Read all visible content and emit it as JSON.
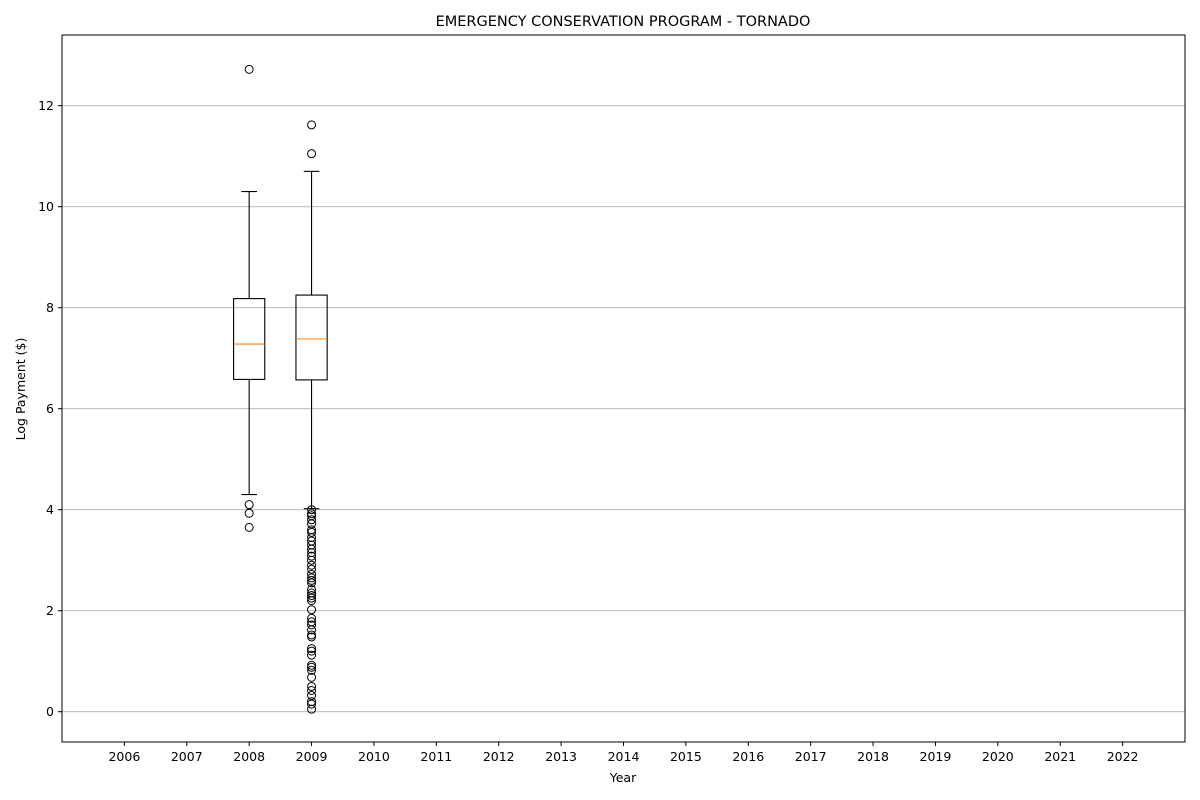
{
  "chart_data": {
    "type": "box",
    "title": "EMERGENCY CONSERVATION PROGRAM - TORNADO",
    "xlabel": "Year",
    "ylabel": "Log Payment ($)",
    "categories": [
      "2006",
      "2007",
      "2008",
      "2009",
      "2010",
      "2011",
      "2012",
      "2013",
      "2014",
      "2015",
      "2016",
      "2017",
      "2018",
      "2019",
      "2020",
      "2021",
      "2022"
    ],
    "ylim": [
      -0.6,
      13.4
    ],
    "yticks": [
      0,
      2,
      4,
      6,
      8,
      10,
      12
    ],
    "grid": "y",
    "colors": {
      "box": "#000000",
      "median": "#ff7f0e",
      "grid": "#b0b0b0"
    },
    "boxes": [
      {
        "category": "2008",
        "whisker_low": 4.3,
        "q1": 6.58,
        "median": 7.28,
        "q3": 8.18,
        "whisker_high": 10.3,
        "outliers": [
          12.72,
          4.1,
          3.93,
          3.65
        ]
      },
      {
        "category": "2009",
        "whisker_low": 4.02,
        "q1": 6.57,
        "median": 7.38,
        "q3": 8.25,
        "whisker_high": 10.7,
        "outliers": [
          11.62,
          11.05,
          4.0,
          3.92,
          3.88,
          3.8,
          3.72,
          3.6,
          3.55,
          3.45,
          3.38,
          3.3,
          3.22,
          3.15,
          3.08,
          3.0,
          2.9,
          2.82,
          2.72,
          2.65,
          2.6,
          2.55,
          2.42,
          2.35,
          2.3,
          2.25,
          2.2,
          2.02,
          1.85,
          1.78,
          1.72,
          1.62,
          1.52,
          1.48,
          1.25,
          1.2,
          1.12,
          0.92,
          0.88,
          0.82,
          0.68,
          0.5,
          0.42,
          0.32,
          0.2,
          0.15,
          0.05
        ]
      }
    ]
  }
}
